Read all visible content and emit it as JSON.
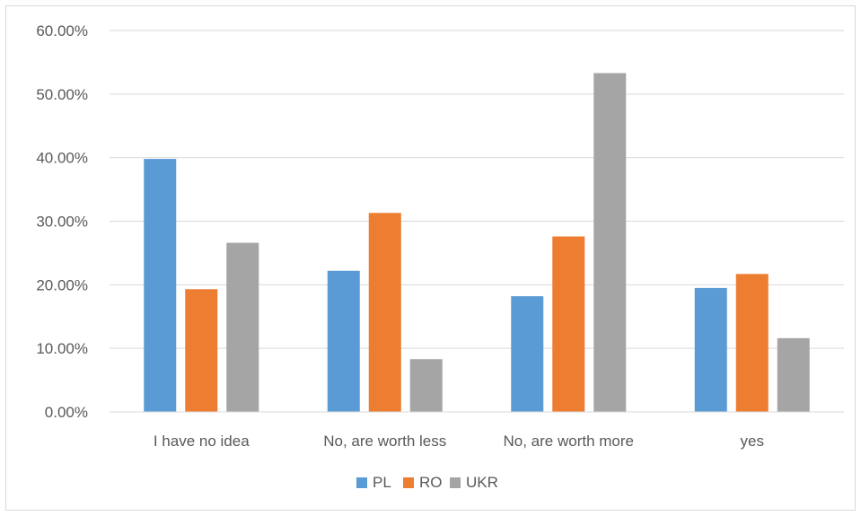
{
  "chart_data": {
    "type": "bar",
    "categories": [
      "I have no idea",
      "No, are worth less",
      "No, are worth more",
      "yes"
    ],
    "series": [
      {
        "name": "PL",
        "color": "#5b9bd5",
        "values": [
          39.8,
          22.2,
          18.2,
          19.5
        ]
      },
      {
        "name": "RO",
        "color": "#ed7d31",
        "values": [
          19.3,
          31.3,
          27.6,
          21.7
        ]
      },
      {
        "name": "UKR",
        "color": "#a5a5a5",
        "values": [
          26.6,
          8.3,
          53.3,
          11.6
        ]
      }
    ],
    "ylim": [
      0,
      60
    ],
    "y_ticks": [
      "0.00%",
      "10.00%",
      "20.00%",
      "30.00%",
      "40.00%",
      "50.00%",
      "60.00%"
    ],
    "grid": true,
    "legend_position": "bottom"
  }
}
